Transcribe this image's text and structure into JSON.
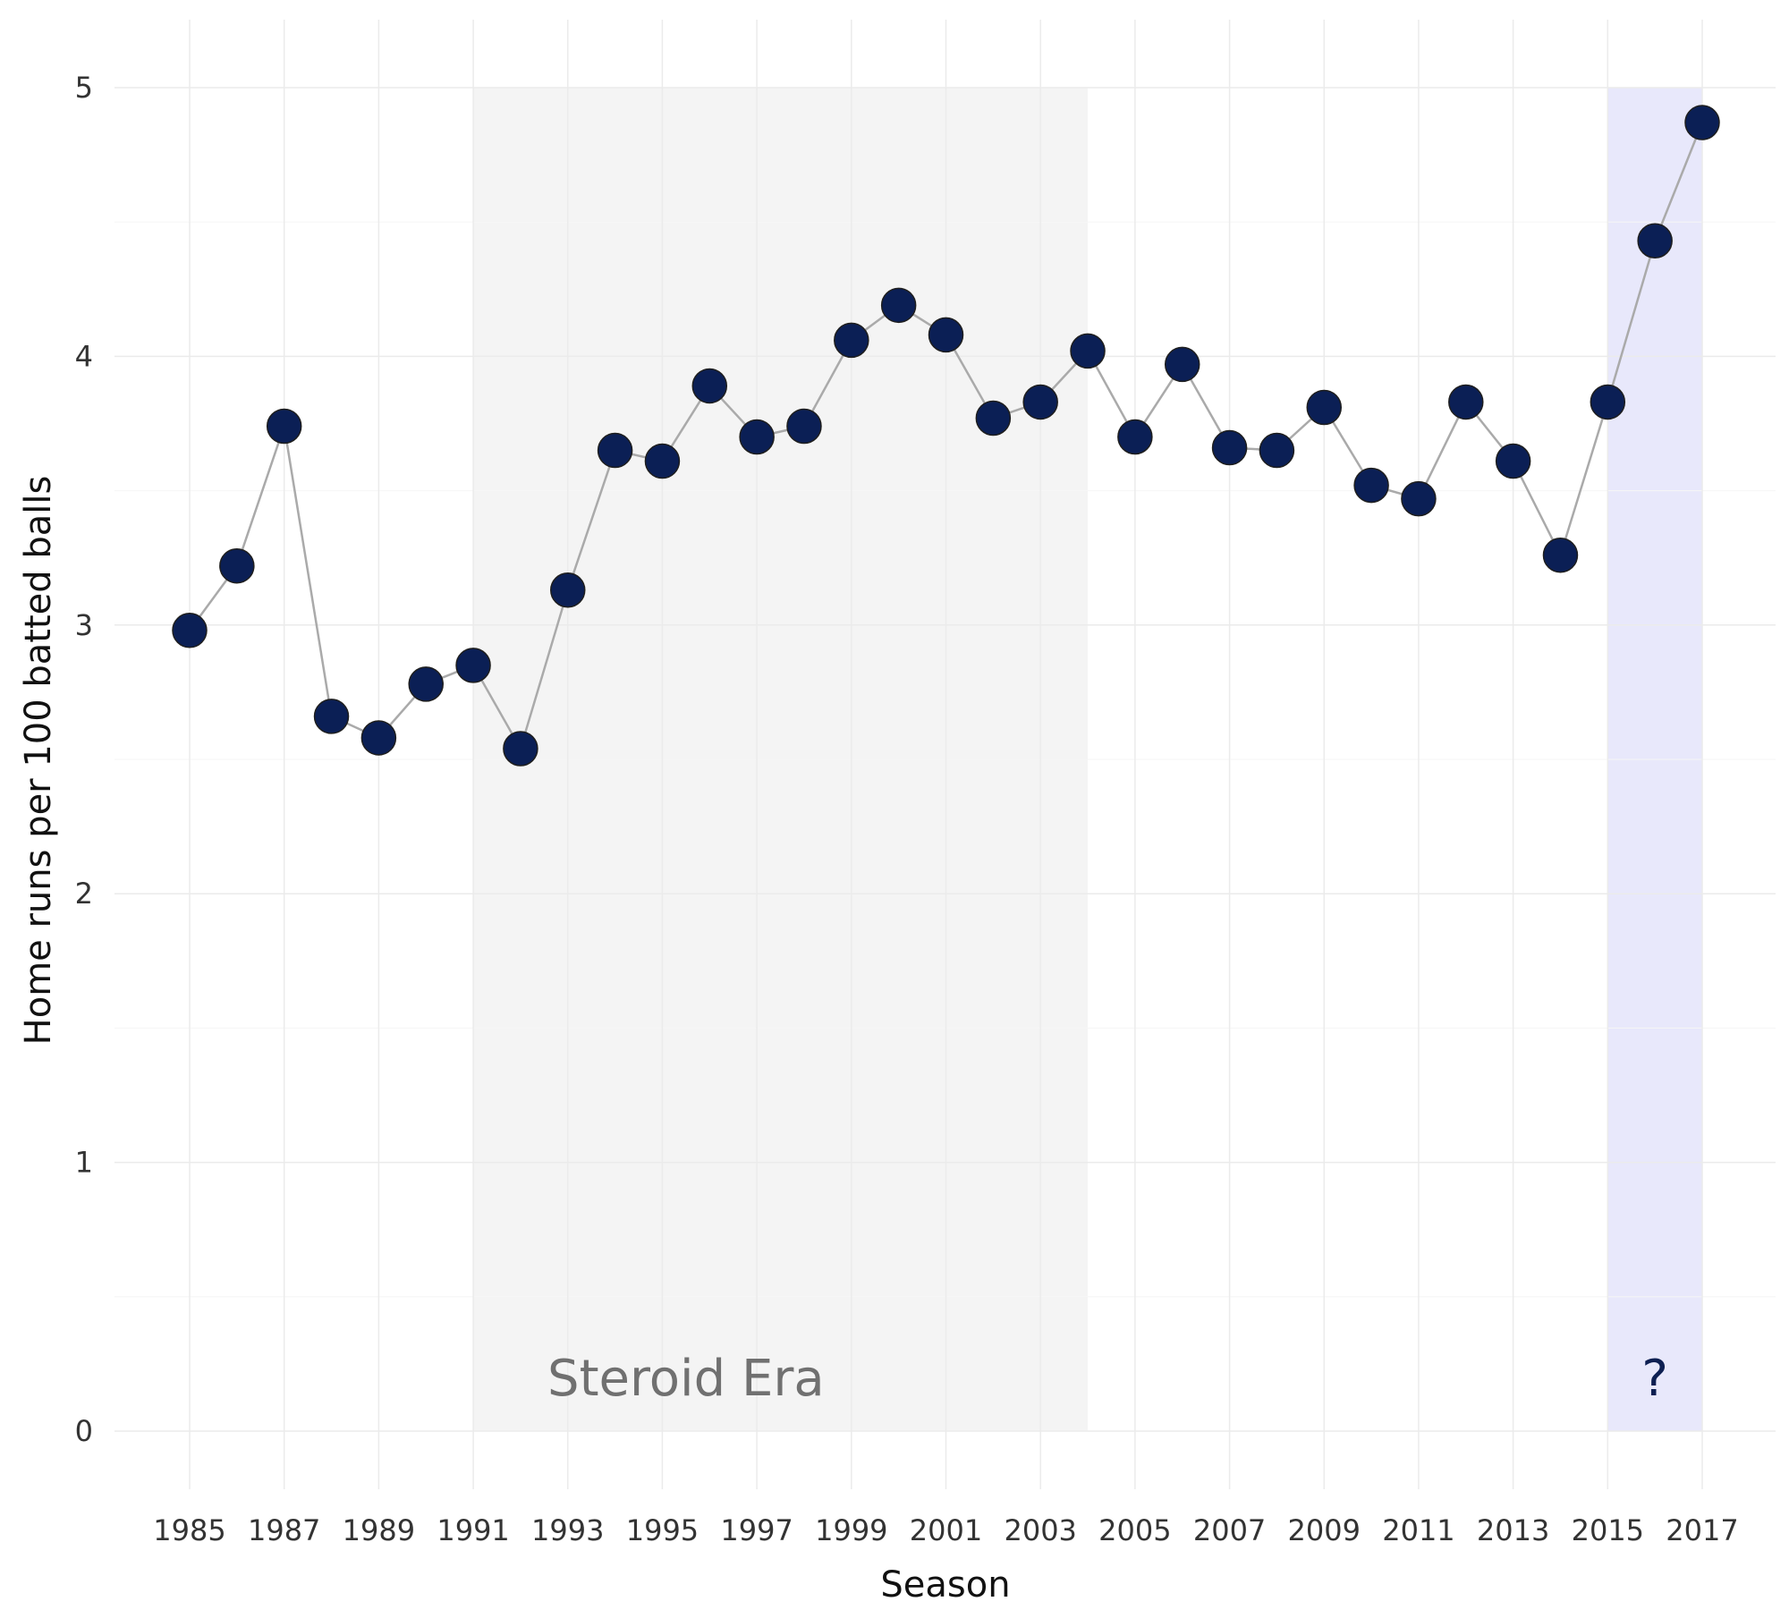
{
  "chart_data": {
    "type": "line",
    "xlabel": "Season",
    "ylabel": "Home runs per 100 batted balls",
    "xlim": [
      1985,
      2017
    ],
    "ylim": [
      0,
      5
    ],
    "x_ticks": [
      "1985",
      "1987",
      "1989",
      "1991",
      "1993",
      "1995",
      "1997",
      "1999",
      "2001",
      "2003",
      "2005",
      "2007",
      "2009",
      "2011",
      "2013",
      "2015",
      "2017"
    ],
    "y_ticks": [
      "0",
      "1",
      "2",
      "3",
      "4",
      "5"
    ],
    "grid": true,
    "legend": "none",
    "x": [
      1985,
      1986,
      1987,
      1988,
      1989,
      1990,
      1991,
      1992,
      1993,
      1994,
      1995,
      1996,
      1997,
      1998,
      1999,
      2000,
      2001,
      2002,
      2003,
      2004,
      2005,
      2006,
      2007,
      2008,
      2009,
      2010,
      2011,
      2012,
      2013,
      2014,
      2015,
      2016,
      2017
    ],
    "values": [
      2.98,
      3.22,
      3.74,
      2.66,
      2.58,
      2.78,
      2.85,
      2.54,
      3.13,
      3.65,
      3.61,
      3.89,
      3.7,
      3.74,
      4.06,
      4.19,
      4.08,
      3.77,
      3.83,
      4.02,
      3.7,
      3.97,
      3.66,
      3.65,
      3.81,
      3.52,
      3.47,
      3.83,
      3.61,
      3.26,
      3.83,
      4.43,
      4.87
    ],
    "regions": [
      {
        "label": "Steroid Era",
        "x_start": 1991,
        "x_end": 2004,
        "color": "#f4f4f4",
        "label_color": "#707070"
      },
      {
        "label": "?",
        "x_start": 2015,
        "x_end": 2017,
        "color": "#e8e8fb",
        "label_color": "#0d1f52"
      }
    ],
    "colors": {
      "point": "#0b1f55",
      "line": "#aaaaaa",
      "grid": "#ebebeb"
    }
  }
}
